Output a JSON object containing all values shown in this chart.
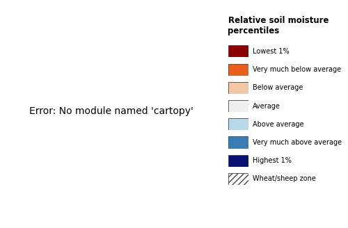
{
  "title": "Relative soil moisture\npercentiles",
  "legend_items": [
    {
      "label": "Lowest 1%",
      "color": "#8B0000",
      "hatch": null
    },
    {
      "label": "Very much below average",
      "color": "#E8601C",
      "hatch": null
    },
    {
      "label": "Below average",
      "color": "#F4C6A8",
      "hatch": null
    },
    {
      "label": "Average",
      "color": "#F0F0F0",
      "hatch": null
    },
    {
      "label": "Above average",
      "color": "#B8D9EA",
      "hatch": null
    },
    {
      "label": "Very much above average",
      "color": "#3A7DB5",
      "hatch": null
    },
    {
      "label": "Highest 1%",
      "color": "#0A1172",
      "hatch": null
    },
    {
      "label": "Wheat/sheep zone",
      "color": "#FFFFFF",
      "hatch": "////"
    }
  ],
  "colormap_colors": [
    "#8B0000",
    "#E8601C",
    "#F4C6A8",
    "#F0F0F0",
    "#B8D9EA",
    "#3A7DB5",
    "#0A1172"
  ],
  "background_color": "#FFFFFF",
  "fig_width": 5.0,
  "fig_height": 3.28,
  "dpi": 100,
  "map_extent": [
    112.5,
    154.0,
    -44.5,
    -10.0
  ],
  "legend_title_fontsize": 8.5,
  "legend_label_fontsize": 7.0
}
